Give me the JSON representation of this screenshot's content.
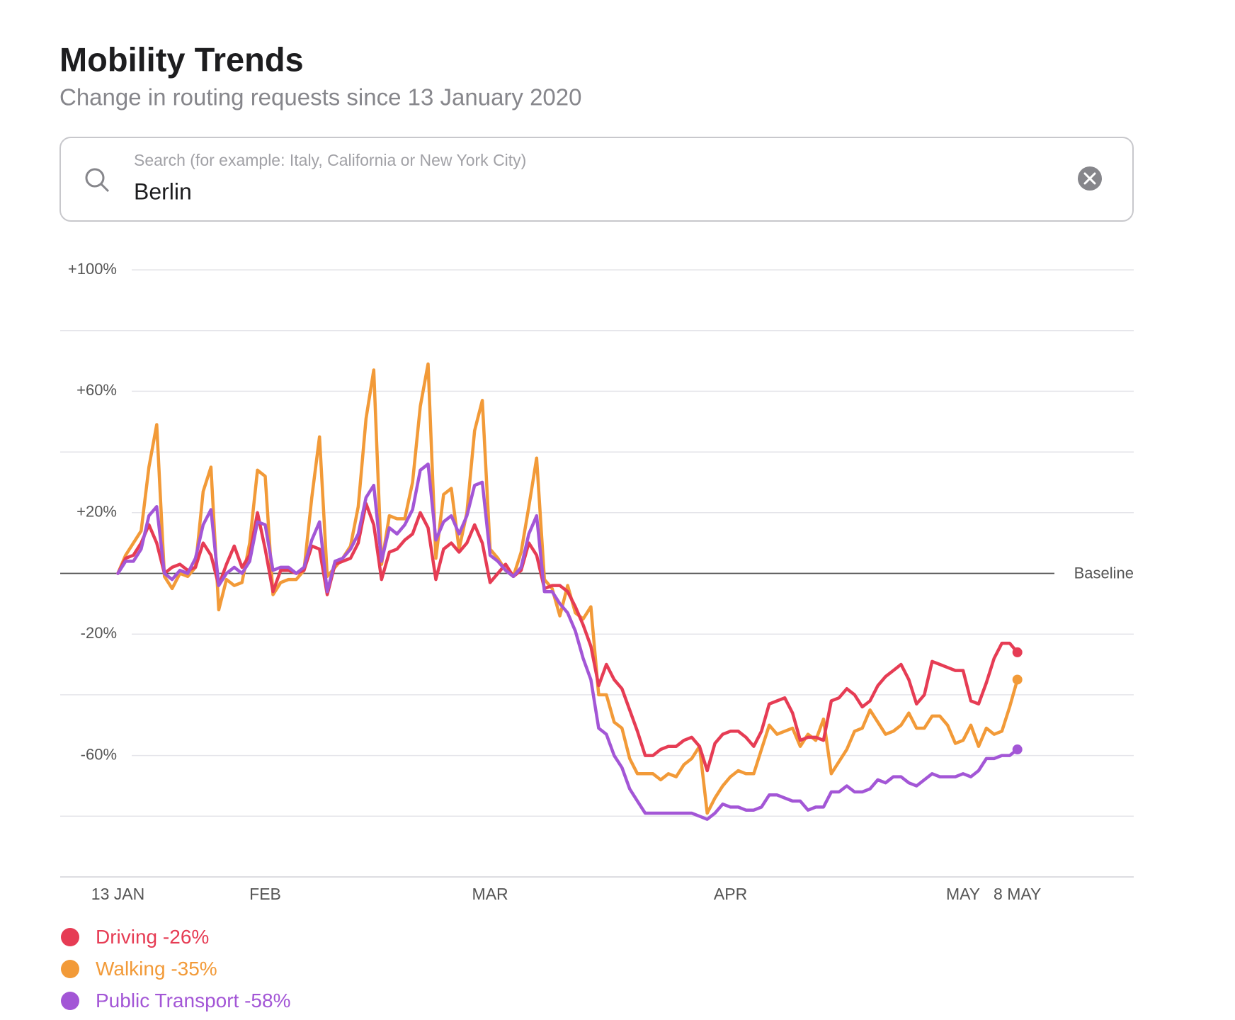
{
  "title": "Mobility Trends",
  "subtitle": "Change in routing requests since 13 January 2020",
  "search": {
    "placeholder": "Search (for example: Italy, California or New York City)",
    "value": "Berlin"
  },
  "chart_data": {
    "type": "line",
    "categories": [
      "13 JAN",
      null,
      null,
      null,
      null,
      null,
      null,
      null,
      null,
      null,
      null,
      null,
      null,
      null,
      null,
      null,
      null,
      null,
      null,
      "FEB",
      null,
      null,
      null,
      null,
      null,
      null,
      null,
      null,
      null,
      null,
      null,
      null,
      null,
      null,
      null,
      null,
      null,
      null,
      null,
      null,
      null,
      null,
      null,
      null,
      null,
      null,
      null,
      null,
      "MAR",
      null,
      null,
      null,
      null,
      null,
      null,
      null,
      null,
      null,
      null,
      null,
      null,
      null,
      null,
      null,
      null,
      null,
      null,
      null,
      null,
      null,
      null,
      null,
      null,
      null,
      null,
      null,
      null,
      null,
      null,
      "APR",
      null,
      null,
      null,
      null,
      null,
      null,
      null,
      null,
      null,
      null,
      null,
      null,
      null,
      null,
      null,
      null,
      null,
      null,
      null,
      null,
      null,
      null,
      null,
      null,
      null,
      null,
      null,
      null,
      null,
      "MAY",
      null,
      null,
      null,
      null,
      null,
      null,
      "8 MAY"
    ],
    "series": [
      {
        "name": "Driving",
        "legend_value": "-26%",
        "color": "#e63c54",
        "values": [
          0,
          5,
          6,
          10,
          16,
          10,
          0,
          2,
          3,
          1,
          2,
          10,
          6,
          -4,
          3,
          9,
          2,
          6,
          20,
          8,
          -6,
          1,
          1,
          0,
          1,
          9,
          8,
          -7,
          3,
          4,
          5,
          10,
          23,
          16,
          -2,
          7,
          8,
          11,
          13,
          20,
          15,
          -2,
          8,
          10,
          7,
          10,
          16,
          10,
          -3,
          0,
          3,
          -1,
          1,
          10,
          6,
          -5,
          -4,
          -4,
          -6,
          -11,
          -17,
          -24,
          -37,
          -30,
          -35,
          -38,
          -45,
          -52,
          -60,
          -60,
          -58,
          -57,
          -57,
          -55,
          -54,
          -57,
          -65,
          -56,
          -53,
          -52,
          -52,
          -54,
          -57,
          -52,
          -43,
          -42,
          -41,
          -46,
          -55,
          -54,
          -54,
          -55,
          -42,
          -41,
          -38,
          -40,
          -44,
          -42,
          -37,
          -34,
          -32,
          -30,
          -35,
          -43,
          -40,
          -29,
          -30,
          -31,
          -32,
          -32,
          -42,
          -43,
          -36,
          -28,
          -23,
          -23,
          -26
        ]
      },
      {
        "name": "Walking",
        "legend_value": "-35%",
        "color": "#f29a38",
        "values": [
          0,
          6,
          10,
          14,
          35,
          49,
          -1,
          -5,
          0,
          -1,
          2,
          27,
          35,
          -12,
          -2,
          -4,
          -3,
          10,
          34,
          32,
          -7,
          -3,
          -2,
          -2,
          1,
          25,
          45,
          -1,
          2,
          5,
          9,
          22,
          51,
          67,
          3,
          19,
          18,
          18,
          30,
          55,
          69,
          5,
          26,
          28,
          8,
          20,
          47,
          57,
          8,
          5,
          1,
          -1,
          7,
          22,
          38,
          -2,
          -5,
          -14,
          -4,
          -13,
          -15,
          -11,
          -40,
          -40,
          -49,
          -51,
          -61,
          -66,
          -66,
          -66,
          -68,
          -66,
          -67,
          -63,
          -61,
          -57,
          -79,
          -74,
          -70,
          -67,
          -65,
          -66,
          -66,
          -58,
          -50,
          -53,
          -52,
          -51,
          -57,
          -53,
          -55,
          -48,
          -66,
          -62,
          -58,
          -52,
          -51,
          -45,
          -49,
          -53,
          -52,
          -50,
          -46,
          -51,
          -51,
          -47,
          -47,
          -50,
          -56,
          -55,
          -50,
          -57,
          -51,
          -53,
          -52,
          -44,
          -35
        ]
      },
      {
        "name": "Public Transport",
        "legend_value": "-58%",
        "color": "#a356d6",
        "values": [
          0,
          4,
          4,
          8,
          19,
          22,
          0,
          -2,
          1,
          0,
          5,
          16,
          21,
          -4,
          0,
          2,
          0,
          4,
          17,
          16,
          1,
          2,
          2,
          0,
          2,
          11,
          17,
          -6,
          4,
          5,
          8,
          13,
          25,
          29,
          4,
          15,
          13,
          16,
          21,
          34,
          36,
          11,
          17,
          19,
          13,
          19,
          29,
          30,
          6,
          4,
          1,
          -1,
          2,
          13,
          19,
          -6,
          -6,
          -10,
          -13,
          -19,
          -28,
          -35,
          -51,
          -53,
          -60,
          -64,
          -71,
          -75,
          -79,
          -79,
          -79,
          -79,
          -79,
          -79,
          -79,
          -80,
          -81,
          -79,
          -76,
          -77,
          -77,
          -78,
          -78,
          -77,
          -73,
          -73,
          -74,
          -75,
          -75,
          -78,
          -77,
          -77,
          -72,
          -72,
          -70,
          -72,
          -72,
          -71,
          -68,
          -69,
          -67,
          -67,
          -69,
          -70,
          -68,
          -66,
          -67,
          -67,
          -67,
          -66,
          -67,
          -65,
          -61,
          -61,
          -60,
          -60,
          -58
        ]
      }
    ],
    "ylim": [
      -100,
      100
    ],
    "yticks": [
      {
        "value": 100,
        "label": "+100%"
      },
      {
        "value": 60,
        "label": "+60%"
      },
      {
        "value": 20,
        "label": "+20%"
      },
      {
        "value": 0,
        "label": "Baseline"
      },
      {
        "value": -20,
        "label": "-20%"
      },
      {
        "value": -60,
        "label": "-60%"
      }
    ],
    "minor_yticks": [
      80,
      40,
      -40,
      -80
    ],
    "grid": true
  }
}
